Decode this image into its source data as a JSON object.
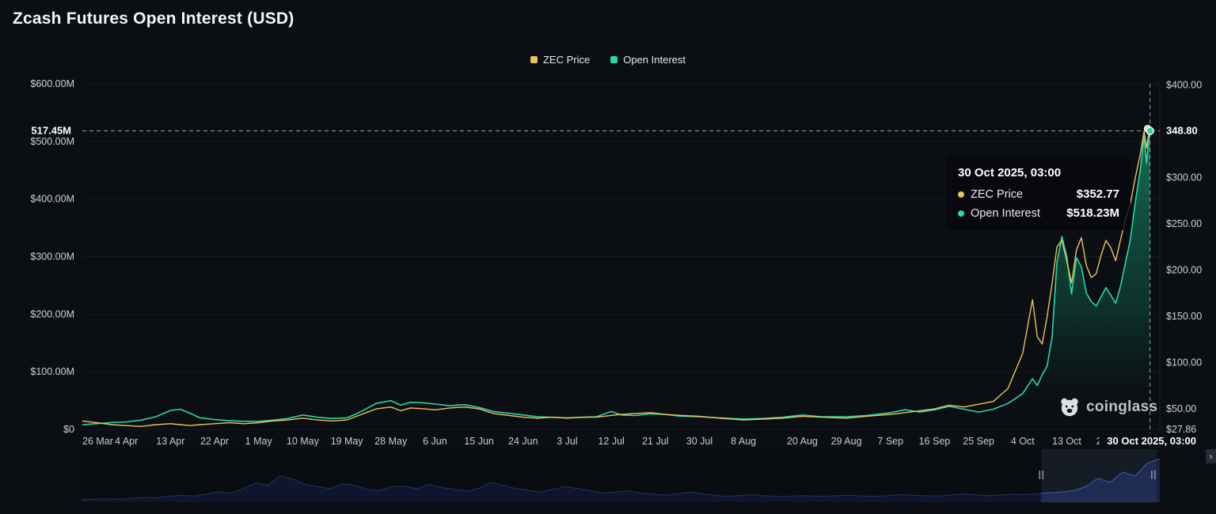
{
  "header": {
    "title": "Zcash Futures Open Interest (USD)"
  },
  "legend": [
    {
      "label": "ZEC Price",
      "color": "#ecc261"
    },
    {
      "label": "Open Interest",
      "color": "#2bd7a2"
    }
  ],
  "tooltip": {
    "date": "30 Oct 2025, 03:00",
    "rows": [
      {
        "label": "ZEC Price",
        "value": "$352.77",
        "color": "#ecc261"
      },
      {
        "label": "Open Interest",
        "value": "$518.23M",
        "color": "#2bd7a2"
      }
    ]
  },
  "crosshair": {
    "left_label": "517.45M",
    "right_label": "348.80",
    "x_label": "30 Oct 2025, 03:00",
    "oi_value": 518.23,
    "price_value": 352.77
  },
  "watermark": {
    "text": "coinglass"
  },
  "controls": {
    "scroll_right_glyph": "›"
  },
  "chart_data": {
    "type": "line",
    "title": "Zcash Futures Open Interest (USD)",
    "x_unit": "days since 26 Mar 2025",
    "x_domain_days": 220,
    "grid": true,
    "legend_position": "top-center",
    "left_axis": {
      "label": "Open Interest (USD)",
      "min": 0,
      "max": 600,
      "ticks": [
        {
          "v": 600,
          "label": "$600.00M"
        },
        {
          "v": 500,
          "label": "$500.00M"
        },
        {
          "v": 400,
          "label": "$400.00M"
        },
        {
          "v": 300,
          "label": "$300.00M"
        },
        {
          "v": 200,
          "label": "$200.00M"
        },
        {
          "v": 100,
          "label": "$100.00M"
        },
        {
          "v": 0,
          "label": "$0"
        }
      ]
    },
    "right_axis": {
      "label": "ZEC Price (USD)",
      "min": 27.86,
      "max": 400,
      "ticks": [
        {
          "v": 400,
          "label": "$400.00"
        },
        {
          "v": 300,
          "label": "$300.00"
        },
        {
          "v": 250,
          "label": "$250.00"
        },
        {
          "v": 200,
          "label": "$200.00"
        },
        {
          "v": 150,
          "label": "$150.00"
        },
        {
          "v": 100,
          "label": "$100.00"
        },
        {
          "v": 50,
          "label": "$50.00"
        },
        {
          "v": 27.86,
          "label": "$27.86"
        }
      ]
    },
    "x_ticks": [
      {
        "d": 0,
        "label": "26 Mar"
      },
      {
        "d": 9,
        "label": "4 Apr"
      },
      {
        "d": 18,
        "label": "13 Apr"
      },
      {
        "d": 27,
        "label": "22 Apr"
      },
      {
        "d": 36,
        "label": "1 May"
      },
      {
        "d": 45,
        "label": "10 May"
      },
      {
        "d": 54,
        "label": "19 May"
      },
      {
        "d": 63,
        "label": "28 May"
      },
      {
        "d": 72,
        "label": "6 Jun"
      },
      {
        "d": 81,
        "label": "15 Jun"
      },
      {
        "d": 90,
        "label": "24 Jun"
      },
      {
        "d": 99,
        "label": "3 Jul"
      },
      {
        "d": 108,
        "label": "12 Jul"
      },
      {
        "d": 117,
        "label": "21 Jul"
      },
      {
        "d": 126,
        "label": "30 Jul"
      },
      {
        "d": 135,
        "label": "8 Aug"
      },
      {
        "d": 147,
        "label": "20 Aug"
      },
      {
        "d": 156,
        "label": "29 Aug"
      },
      {
        "d": 165,
        "label": "7 Sep"
      },
      {
        "d": 174,
        "label": "16 Sep"
      },
      {
        "d": 183,
        "label": "25 Sep"
      },
      {
        "d": 192,
        "label": "4 Oct"
      },
      {
        "d": 201,
        "label": "13 Oct"
      },
      {
        "d": 210,
        "label": "22 Oct"
      }
    ],
    "x": [
      0,
      3,
      6,
      9,
      12,
      15,
      18,
      20,
      22,
      24,
      27,
      30,
      33,
      36,
      39,
      42,
      45,
      48,
      51,
      54,
      56,
      58,
      60,
      63,
      65,
      67,
      70,
      72,
      75,
      78,
      81,
      84,
      87,
      90,
      93,
      96,
      99,
      102,
      105,
      108,
      110,
      113,
      116,
      119,
      122,
      126,
      130,
      135,
      139,
      143,
      147,
      151,
      156,
      160,
      165,
      168,
      171,
      174,
      177,
      180,
      183,
      186,
      189,
      192,
      194,
      195,
      196,
      197,
      198,
      199,
      200,
      201,
      202,
      203,
      204,
      205,
      206,
      207,
      208,
      209,
      210,
      211,
      212,
      213,
      214,
      215,
      216,
      216.8,
      217.3,
      217.7,
      218
    ],
    "series": [
      {
        "name": "Open Interest",
        "axis": "left",
        "color": "#2bd7a2",
        "fill": true,
        "values": [
          8,
          10,
          12,
          13,
          16,
          22,
          33,
          35,
          28,
          20,
          17,
          15,
          14,
          14,
          16,
          19,
          25,
          21,
          19,
          20,
          27,
          36,
          45,
          50,
          42,
          47,
          46,
          44,
          41,
          43,
          38,
          31,
          28,
          25,
          22,
          21,
          20,
          21,
          22,
          31,
          25,
          24,
          27,
          26,
          23,
          22,
          20,
          18,
          19,
          21,
          25,
          22,
          22,
          24,
          29,
          34,
          30,
          34,
          40,
          35,
          30,
          35,
          45,
          62,
          88,
          76,
          95,
          110,
          160,
          290,
          335,
          300,
          235,
          298,
          282,
          237,
          222,
          214,
          230,
          246,
          233,
          219,
          249,
          290,
          330,
          395,
          450,
          510,
          462,
          500,
          518.23
        ]
      },
      {
        "name": "ZEC Price",
        "axis": "right",
        "color": "#ecc261",
        "fill": false,
        "values": [
          37,
          35,
          33,
          32,
          31,
          33,
          34,
          33,
          32,
          33,
          34,
          35,
          34,
          35,
          37,
          38,
          40,
          38,
          37,
          38,
          42,
          46,
          50,
          52,
          48,
          51,
          50,
          49,
          51,
          52,
          50,
          45,
          43,
          41,
          40,
          41,
          40,
          41,
          41,
          43,
          44,
          45,
          46,
          44,
          43,
          42,
          40,
          38,
          39,
          40,
          42,
          41,
          40,
          42,
          44,
          46,
          48,
          50,
          54,
          52,
          55,
          58,
          72,
          110,
          168,
          128,
          120,
          150,
          185,
          225,
          232,
          210,
          186,
          222,
          235,
          205,
          192,
          196,
          216,
          232,
          224,
          210,
          233,
          255,
          272,
          300,
          325,
          350,
          332,
          346,
          352.77
        ]
      }
    ],
    "navigator": {
      "window_start_frac": 0.89,
      "window_end_frac": 0.997,
      "values": [
        4,
        5,
        6,
        5,
        7,
        9,
        8,
        11,
        14,
        12,
        16,
        22,
        19,
        28,
        42,
        36,
        58,
        50,
        38,
        33,
        29,
        40,
        36,
        27,
        24,
        33,
        34,
        29,
        38,
        31,
        27,
        23,
        29,
        43,
        36,
        29,
        25,
        21,
        27,
        33,
        29,
        24,
        19,
        21,
        24,
        19,
        17,
        14,
        17,
        21,
        17,
        14,
        11,
        13,
        15,
        13,
        11,
        11,
        13,
        12,
        11,
        13,
        14,
        12,
        11,
        13,
        15,
        14,
        13,
        12,
        14,
        17,
        15,
        13,
        14,
        16,
        15,
        17,
        19,
        21,
        24,
        33,
        52,
        43,
        66,
        57,
        86,
        96
      ]
    }
  }
}
